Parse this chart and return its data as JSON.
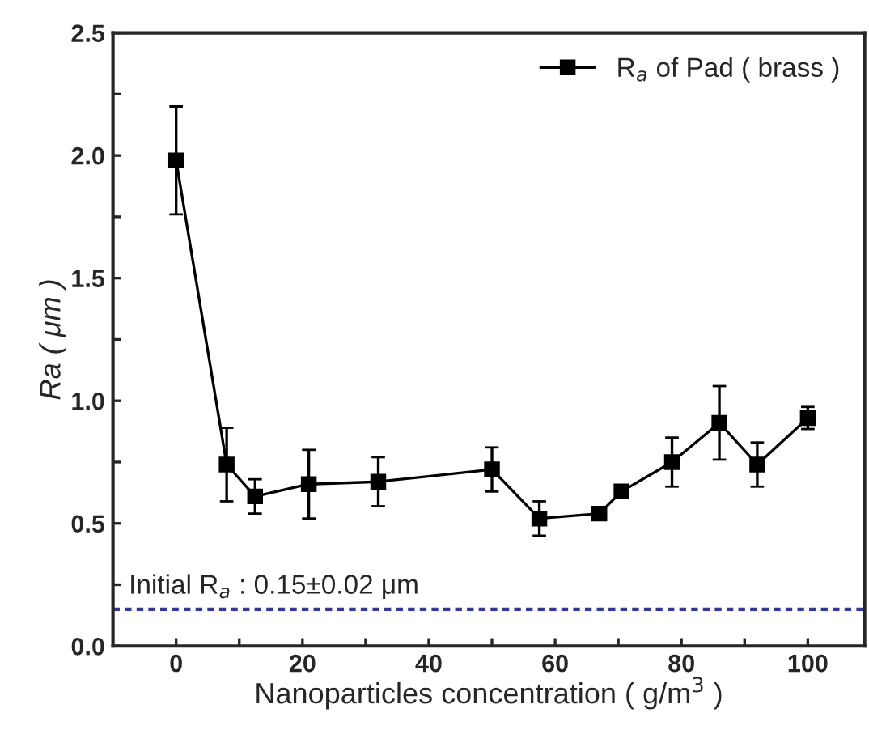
{
  "chart_data": {
    "type": "line",
    "xlabel": "Nanoparticles concentration ( g/m$^{3}$ )",
    "ylabel": "Ra ( μm )",
    "x": [
      0,
      8,
      12.5,
      21,
      32,
      50,
      57.5,
      67,
      70.5,
      78.5,
      86,
      92,
      100
    ],
    "series": [
      {
        "name": "R$_{a}$ of Pad ( brass )",
        "color": "#000000",
        "values": [
          1.98,
          0.74,
          0.61,
          0.66,
          0.67,
          0.72,
          0.52,
          0.54,
          0.63,
          0.75,
          0.91,
          0.74,
          0.93
        ],
        "errors": [
          0.22,
          0.15,
          0.07,
          0.14,
          0.1,
          0.09,
          0.07,
          0.02,
          null,
          0.1,
          0.15,
          0.09,
          0.045
        ]
      }
    ],
    "ref_lines": [
      {
        "axis": "y",
        "value": 0.15,
        "label": "Initial R$_{a}$ : 0.15±0.02 μm",
        "color": "#3333aa",
        "line_style": "dashed"
      }
    ],
    "xlim": [
      -10,
      109
    ],
    "ylim": [
      0,
      2.5
    ],
    "xticks": [
      0,
      {
        "value": 10,
        "label": null
      },
      20,
      {
        "value": 30,
        "label": null
      },
      40,
      {
        "value": 50,
        "label": null
      },
      60,
      {
        "value": 70,
        "label": null
      },
      80,
      {
        "value": 90,
        "label": null
      },
      100
    ],
    "yticks": [
      {
        "value": 0,
        "label": "0.0"
      },
      {
        "value": 0.25,
        "label": null
      },
      0.5,
      {
        "value": 0.75,
        "label": null
      },
      {
        "value": 1,
        "label": "1.0"
      },
      {
        "value": 1.25,
        "label": null
      },
      1.5,
      {
        "value": 1.75,
        "label": null
      },
      {
        "value": 2,
        "label": "2.0"
      },
      {
        "value": 2.25,
        "label": null
      },
      2.5
    ],
    "marker": "square",
    "line_style": "solid",
    "legend": "top right",
    "grid": false
  }
}
